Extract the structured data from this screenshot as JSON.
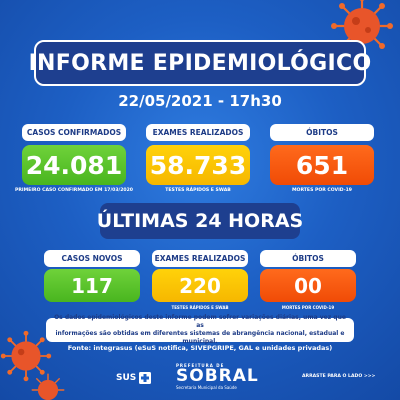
{
  "header": {
    "title": "INFORME EPIDEMIOLÓGICO",
    "date": "22/05/2021 - 17h30"
  },
  "totals": {
    "cases": {
      "label": "CASOS CONFIRMADOS",
      "value": "24.081",
      "note": "PRIMEIRO CASO CONFIRMADO EM 17/03/2020",
      "color": "#4cb622"
    },
    "exams": {
      "label": "EXAMES REALIZADOS",
      "value": "58.733",
      "note": "TESTES RÁPIDOS E SWAB",
      "color": "#f7bd00"
    },
    "deaths": {
      "label": "ÓBITOS",
      "value": "651",
      "note": "MORTES POR COVID-19",
      "color": "#f25008"
    }
  },
  "last24": {
    "title": "ÚLTIMAS 24 HORAS",
    "cases": {
      "label": "CASOS NOVOS",
      "value": "117"
    },
    "exams": {
      "label": "EXAMES REALIZADOS",
      "value": "220",
      "note": "TESTES RÁPIDOS E SWAB"
    },
    "deaths": {
      "label": "ÓBITOS",
      "value": "00",
      "note": "MORTES POR COVID-19"
    }
  },
  "disclaimer": {
    "line1": "Os dados epidemiológicos deste informe podem sofrer variações diárias, uma vez que as",
    "line2": "informações são obtidas em diferentes sistemas de abrangência nacional, estadual e municipal."
  },
  "source": "Fonte: integrasus (eSuS notifica, SIVEPGRIPE, GAL e unidades privadas)",
  "footer": {
    "sus": "SUS",
    "prefeitura_small": "PREFEITURA DE",
    "prefeitura_big": "SOBRAL",
    "prefeitura_sub": "Secretaria Municipal da Saúde",
    "swipe": "ARRASTE PARA O LADO >>>"
  },
  "icons": {
    "virus": "coronavirus-icon",
    "sus_cross": "sus-cross-icon"
  },
  "colors": {
    "background": "#1d5fc4",
    "title_box": "#1e3f8f",
    "green": "#4cb622",
    "yellow": "#f7bd00",
    "red": "#f25008"
  }
}
